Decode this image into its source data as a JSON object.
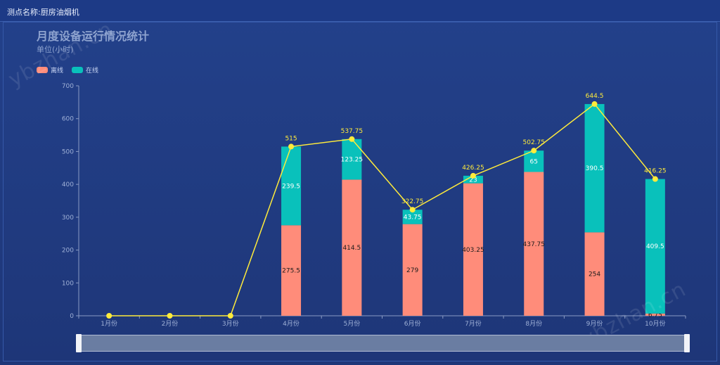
{
  "header": {
    "station_label": "测点名称:厨房油烟机"
  },
  "chart_data": {
    "type": "bar",
    "title": "月度设备运行情况统计",
    "subtitle": "单位(小时)",
    "categories": [
      "1月份",
      "2月份",
      "3月份",
      "4月份",
      "5月份",
      "6月份",
      "7月份",
      "8月份",
      "9月份",
      "10月份"
    ],
    "series": [
      {
        "name": "离线",
        "type": "bar",
        "stack": "total",
        "color": "#ff8c7a",
        "values": [
          0,
          0,
          0,
          275.5,
          414.5,
          279,
          403.25,
          437.75,
          254,
          6.75
        ]
      },
      {
        "name": "在线",
        "type": "bar",
        "stack": "total",
        "color": "#09c1bb",
        "values": [
          0,
          0,
          0,
          239.5,
          123.25,
          43.75,
          23,
          65,
          390.5,
          409.5
        ]
      },
      {
        "type": "line",
        "color": "#ffeb3b",
        "values": [
          0,
          0,
          0,
          515,
          537.75,
          322.75,
          426.25,
          502.75,
          644.5,
          416.25
        ]
      }
    ],
    "yticks": [
      "0",
      "100",
      "200",
      "300",
      "400",
      "500",
      "600",
      "700"
    ],
    "ylim": [
      0,
      700
    ],
    "grid": false,
    "legend_position": "top-left"
  },
  "slider": {
    "range": [
      0,
      1
    ]
  },
  "watermarks": [
    "ybzhan.cn",
    "ybzhan.cn"
  ]
}
